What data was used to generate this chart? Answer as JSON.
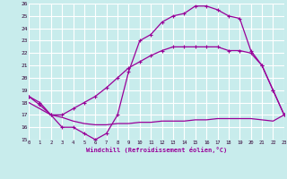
{
  "xlabel": "Windchill (Refroidissement éolien,°C)",
  "background_color": "#c8ecec",
  "grid_color": "#ffffff",
  "line_color": "#990099",
  "xlim": [
    0,
    23
  ],
  "ylim": [
    15,
    26
  ],
  "xticks": [
    0,
    1,
    2,
    3,
    4,
    5,
    6,
    7,
    8,
    9,
    10,
    11,
    12,
    13,
    14,
    15,
    16,
    17,
    18,
    19,
    20,
    21,
    22,
    23
  ],
  "yticks": [
    15,
    16,
    17,
    18,
    19,
    20,
    21,
    22,
    23,
    24,
    25,
    26
  ],
  "curve1_x": [
    0,
    1,
    2,
    3,
    4,
    5,
    6,
    7,
    8,
    9,
    10,
    11,
    12,
    13,
    14,
    15,
    16,
    17,
    18,
    19,
    20,
    21,
    22,
    23
  ],
  "curve1_y": [
    18.5,
    17.8,
    17.0,
    16.0,
    16.0,
    15.5,
    15.0,
    15.5,
    17.0,
    20.5,
    23.0,
    23.5,
    24.5,
    25.0,
    25.2,
    25.8,
    25.8,
    25.5,
    25.0,
    24.8,
    22.2,
    21.0,
    19.0,
    17.0
  ],
  "curve2_x": [
    0,
    1,
    2,
    3,
    4,
    5,
    6,
    7,
    8,
    9,
    10,
    11,
    12,
    13,
    14,
    15,
    16,
    17,
    18,
    19,
    20,
    21,
    22,
    23
  ],
  "curve2_y": [
    18.0,
    17.5,
    17.0,
    16.8,
    16.5,
    16.3,
    16.2,
    16.2,
    16.3,
    16.3,
    16.4,
    16.4,
    16.5,
    16.5,
    16.5,
    16.6,
    16.6,
    16.7,
    16.7,
    16.7,
    16.7,
    16.6,
    16.5,
    17.0
  ],
  "curve3_x": [
    0,
    1,
    2,
    3,
    4,
    5,
    6,
    7,
    8,
    9,
    10,
    11,
    12,
    13,
    14,
    15,
    16,
    17,
    18,
    19,
    20,
    21,
    22,
    23
  ],
  "curve3_y": [
    18.5,
    18.0,
    17.0,
    17.0,
    17.5,
    18.0,
    18.5,
    19.2,
    20.0,
    20.8,
    21.3,
    21.8,
    22.2,
    22.5,
    22.5,
    22.5,
    22.5,
    22.5,
    22.2,
    22.2,
    22.0,
    21.0,
    19.0,
    17.0
  ]
}
